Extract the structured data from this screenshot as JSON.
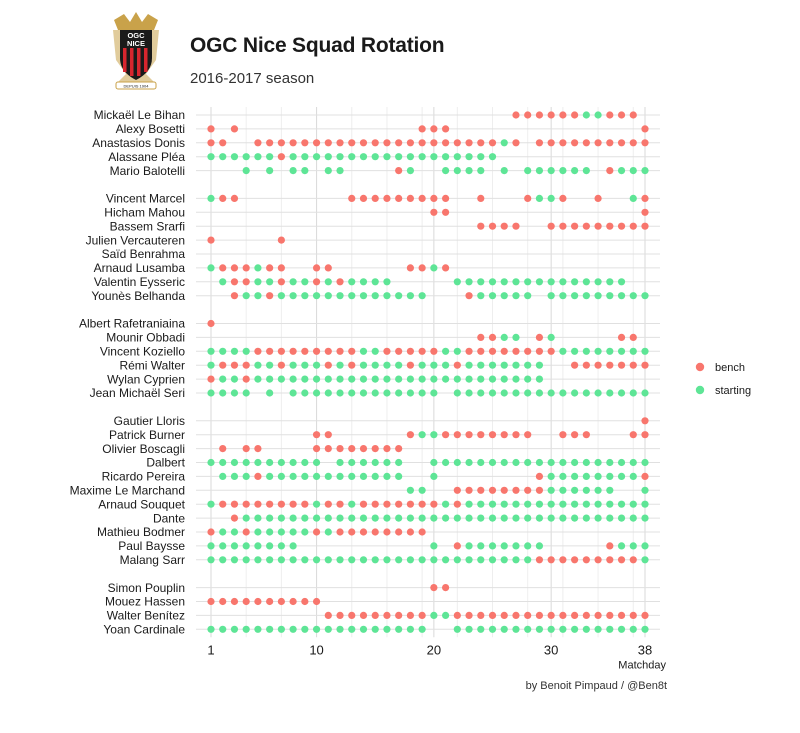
{
  "header": {
    "title": "OGC Nice Squad Rotation",
    "subtitle": "2016-2017 season",
    "logo_text_top": "OGC",
    "logo_text_mid": "NICE",
    "logo_text_bottom": "DEPUIS 1904"
  },
  "caption": "by Benoit Pimpaud / @Ben8t",
  "colors": {
    "bench": "#f8766d",
    "starting": "#5ee596",
    "grid": "#e0e0e0",
    "logo_red": "#d7262e",
    "logo_gold": "#c9a24a",
    "logo_black": "#1a1a1a"
  },
  "chart_data": {
    "type": "scatter",
    "title": "OGC Nice Squad Rotation",
    "subtitle": "2016-2017 season",
    "xlabel": "Matchday",
    "ylabel": "",
    "xlim": [
      1,
      38
    ],
    "xticks": [
      1,
      10,
      20,
      30,
      38
    ],
    "grid": true,
    "legend_position": "right",
    "legend": [
      {
        "name": "bench",
        "color": "#f8766d"
      },
      {
        "name": "starting",
        "color": "#5ee596"
      }
    ],
    "groups": [
      {
        "players": [
          {
            "name": "Mickaël Le Bihan",
            "starting": [
              33,
              34
            ],
            "bench": [
              27,
              28,
              29,
              30,
              31,
              32,
              35,
              36,
              37
            ]
          },
          {
            "name": "Alexy Bosetti",
            "starting": [],
            "bench": [
              1,
              3,
              19,
              20,
              21,
              38
            ]
          },
          {
            "name": "Anastasios Donis",
            "starting": [
              26
            ],
            "bench": [
              1,
              2,
              5,
              6,
              7,
              8,
              9,
              10,
              11,
              12,
              13,
              14,
              15,
              16,
              17,
              18,
              19,
              20,
              21,
              22,
              23,
              24,
              25,
              27,
              29,
              30,
              31,
              32,
              33,
              34,
              35,
              36,
              37,
              38
            ]
          },
          {
            "name": "Alassane Pléa",
            "starting": [
              1,
              2,
              3,
              4,
              5,
              6,
              8,
              9,
              10,
              11,
              12,
              13,
              14,
              15,
              16,
              17,
              18,
              19,
              20,
              21,
              22,
              23,
              24,
              25
            ],
            "bench": [
              7
            ]
          },
          {
            "name": "Mario Balotelli",
            "starting": [
              4,
              6,
              8,
              9,
              11,
              12,
              18,
              21,
              22,
              23,
              24,
              26,
              28,
              29,
              30,
              31,
              32,
              33,
              36,
              37,
              38
            ],
            "bench": [
              17,
              35
            ]
          }
        ]
      },
      {
        "players": [
          {
            "name": "Vincent Marcel",
            "starting": [
              1,
              29,
              30,
              37
            ],
            "bench": [
              2,
              3,
              13,
              14,
              15,
              16,
              17,
              18,
              19,
              20,
              21,
              24,
              28,
              31,
              34,
              38
            ]
          },
          {
            "name": "Hicham Mahou",
            "starting": [],
            "bench": [
              20,
              21,
              38
            ]
          },
          {
            "name": "Bassem Srarfi",
            "starting": [],
            "bench": [
              24,
              25,
              26,
              27,
              30,
              31,
              32,
              33,
              34,
              35,
              36,
              37,
              38
            ]
          },
          {
            "name": "Julien Vercauteren",
            "starting": [],
            "bench": [
              1,
              7
            ]
          },
          {
            "name": "Saïd Benrahma",
            "starting": [],
            "bench": []
          },
          {
            "name": "Arnaud Lusamba",
            "starting": [
              1,
              5,
              20
            ],
            "bench": [
              2,
              3,
              4,
              6,
              7,
              10,
              11,
              18,
              19,
              21
            ]
          },
          {
            "name": "Valentin Eysseric",
            "starting": [
              2,
              5,
              6,
              8,
              9,
              11,
              13,
              14,
              15,
              16,
              22,
              23,
              24,
              25,
              26,
              27,
              28,
              29,
              30,
              31,
              32,
              33,
              34,
              35,
              36
            ],
            "bench": [
              3,
              4,
              7,
              10,
              12
            ]
          },
          {
            "name": "Younès Belhanda",
            "starting": [
              4,
              5,
              7,
              8,
              9,
              10,
              11,
              12,
              13,
              14,
              15,
              16,
              17,
              18,
              19,
              24,
              25,
              26,
              27,
              28,
              30,
              31,
              32,
              33,
              34,
              35,
              36,
              37,
              38
            ],
            "bench": [
              3,
              6,
              23
            ]
          }
        ]
      },
      {
        "players": [
          {
            "name": "Albert Rafetraniaina",
            "starting": [],
            "bench": [
              1
            ]
          },
          {
            "name": "Mounir Obbadi",
            "starting": [
              26,
              27,
              30
            ],
            "bench": [
              24,
              25,
              29,
              36,
              37
            ]
          },
          {
            "name": "Vincent Koziello",
            "starting": [
              1,
              2,
              3,
              4,
              14,
              15,
              21,
              22,
              31,
              32,
              33,
              34,
              35,
              36,
              37,
              38
            ],
            "bench": [
              5,
              6,
              7,
              8,
              9,
              10,
              11,
              12,
              13,
              16,
              17,
              18,
              19,
              20,
              23,
              24,
              25,
              26,
              27,
              28,
              29,
              30
            ]
          },
          {
            "name": "Rémi Walter",
            "starting": [
              1,
              5,
              6,
              8,
              9,
              10,
              12,
              14,
              15,
              16,
              17,
              19,
              20,
              21,
              23,
              24,
              25,
              26,
              27,
              28,
              29
            ],
            "bench": [
              2,
              3,
              4,
              7,
              11,
              13,
              18,
              22,
              32,
              33,
              34,
              35,
              36,
              37,
              38
            ]
          },
          {
            "name": "Wylan Cyprien",
            "starting": [
              2,
              3,
              5,
              6,
              7,
              8,
              9,
              10,
              11,
              12,
              13,
              14,
              15,
              16,
              17,
              18,
              19,
              20,
              21,
              22,
              23,
              24,
              25,
              26,
              27,
              28,
              29
            ],
            "bench": [
              1,
              4
            ]
          },
          {
            "name": "Jean Michaël Seri",
            "starting": [
              1,
              2,
              3,
              4,
              6,
              8,
              9,
              10,
              11,
              12,
              13,
              14,
              15,
              16,
              17,
              18,
              19,
              20,
              22,
              23,
              24,
              25,
              26,
              27,
              28,
              29,
              30,
              31,
              32,
              33,
              34,
              35,
              36,
              37,
              38
            ],
            "bench": []
          }
        ]
      },
      {
        "players": [
          {
            "name": "Gautier Lloris",
            "starting": [],
            "bench": [
              38
            ]
          },
          {
            "name": "Patrick Burner",
            "starting": [
              19,
              20
            ],
            "bench": [
              10,
              11,
              18,
              21,
              22,
              23,
              24,
              25,
              26,
              27,
              28,
              31,
              32,
              33,
              37,
              38
            ]
          },
          {
            "name": "Olivier Boscagli",
            "starting": [],
            "bench": [
              2,
              4,
              5,
              10,
              11,
              12,
              13,
              14,
              15,
              16,
              17
            ]
          },
          {
            "name": "Dalbert",
            "starting": [
              1,
              2,
              3,
              4,
              5,
              6,
              7,
              8,
              9,
              10,
              12,
              13,
              14,
              15,
              16,
              17,
              20,
              21,
              22,
              23,
              24,
              25,
              26,
              27,
              28,
              29,
              30,
              31,
              32,
              33,
              34,
              35,
              36,
              37,
              38
            ],
            "bench": []
          },
          {
            "name": "Ricardo Pereira",
            "starting": [
              2,
              3,
              4,
              6,
              7,
              8,
              9,
              10,
              11,
              12,
              13,
              14,
              15,
              16,
              17,
              20,
              30,
              31,
              32,
              33,
              34,
              35,
              36,
              37
            ],
            "bench": [
              5,
              29,
              38
            ]
          },
          {
            "name": "Maxime Le Marchand",
            "starting": [
              18,
              19,
              30,
              31,
              32,
              33,
              34,
              35,
              38
            ],
            "bench": [
              22,
              23,
              24,
              25,
              26,
              27,
              28,
              29
            ]
          },
          {
            "name": "Arnaud Souquet",
            "starting": [
              1,
              10,
              13,
              21,
              23,
              24,
              25,
              26,
              27,
              28,
              29,
              30,
              31,
              32,
              33,
              34,
              35,
              36,
              37,
              38
            ],
            "bench": [
              2,
              3,
              4,
              5,
              6,
              7,
              8,
              9,
              11,
              12,
              14,
              15,
              16,
              17,
              18,
              19,
              20,
              22
            ]
          },
          {
            "name": "Dante",
            "starting": [
              4,
              5,
              6,
              7,
              8,
              9,
              10,
              11,
              12,
              13,
              14,
              15,
              16,
              17,
              18,
              19,
              20,
              21,
              22,
              23,
              24,
              25,
              26,
              27,
              28,
              29,
              30,
              31,
              32,
              33,
              34,
              35,
              36,
              37,
              38
            ],
            "bench": [
              3
            ]
          },
          {
            "name": "Mathieu Bodmer",
            "starting": [
              2,
              3,
              5,
              6,
              7,
              8,
              9,
              11
            ],
            "bench": [
              1,
              4,
              10,
              12,
              13,
              14,
              15,
              16,
              17,
              18,
              19
            ]
          },
          {
            "name": "Paul Baysse",
            "starting": [
              1,
              2,
              3,
              4,
              5,
              6,
              7,
              8,
              20,
              23,
              24,
              25,
              26,
              27,
              28,
              29,
              36,
              37,
              38
            ],
            "bench": [
              22,
              35
            ]
          },
          {
            "name": "Malang Sarr",
            "starting": [
              1,
              2,
              3,
              4,
              5,
              6,
              7,
              8,
              9,
              10,
              11,
              12,
              13,
              14,
              15,
              16,
              17,
              18,
              19,
              20,
              21,
              22,
              23,
              24,
              25,
              26,
              27,
              28,
              38
            ],
            "bench": [
              29,
              30,
              31,
              32,
              33,
              34,
              35,
              36,
              37
            ]
          }
        ]
      },
      {
        "players": [
          {
            "name": "Simon Pouplin",
            "starting": [],
            "bench": [
              20,
              21
            ]
          },
          {
            "name": "Mouez Hassen",
            "starting": [],
            "bench": [
              1,
              2,
              3,
              4,
              5,
              6,
              7,
              8,
              9,
              10
            ]
          },
          {
            "name": "Walter Benítez",
            "starting": [
              20,
              21
            ],
            "bench": [
              11,
              12,
              13,
              14,
              15,
              16,
              17,
              18,
              19,
              22,
              23,
              24,
              25,
              26,
              27,
              28,
              29,
              30,
              31,
              32,
              33,
              34,
              35,
              36,
              37,
              38
            ]
          },
          {
            "name": "Yoan Cardinale",
            "starting": [
              1,
              2,
              3,
              4,
              5,
              6,
              7,
              8,
              9,
              10,
              11,
              12,
              13,
              14,
              15,
              16,
              17,
              18,
              19,
              22,
              23,
              24,
              25,
              26,
              27,
              28,
              29,
              30,
              31,
              32,
              33,
              34,
              35,
              36,
              37,
              38
            ],
            "bench": []
          }
        ]
      }
    ]
  }
}
